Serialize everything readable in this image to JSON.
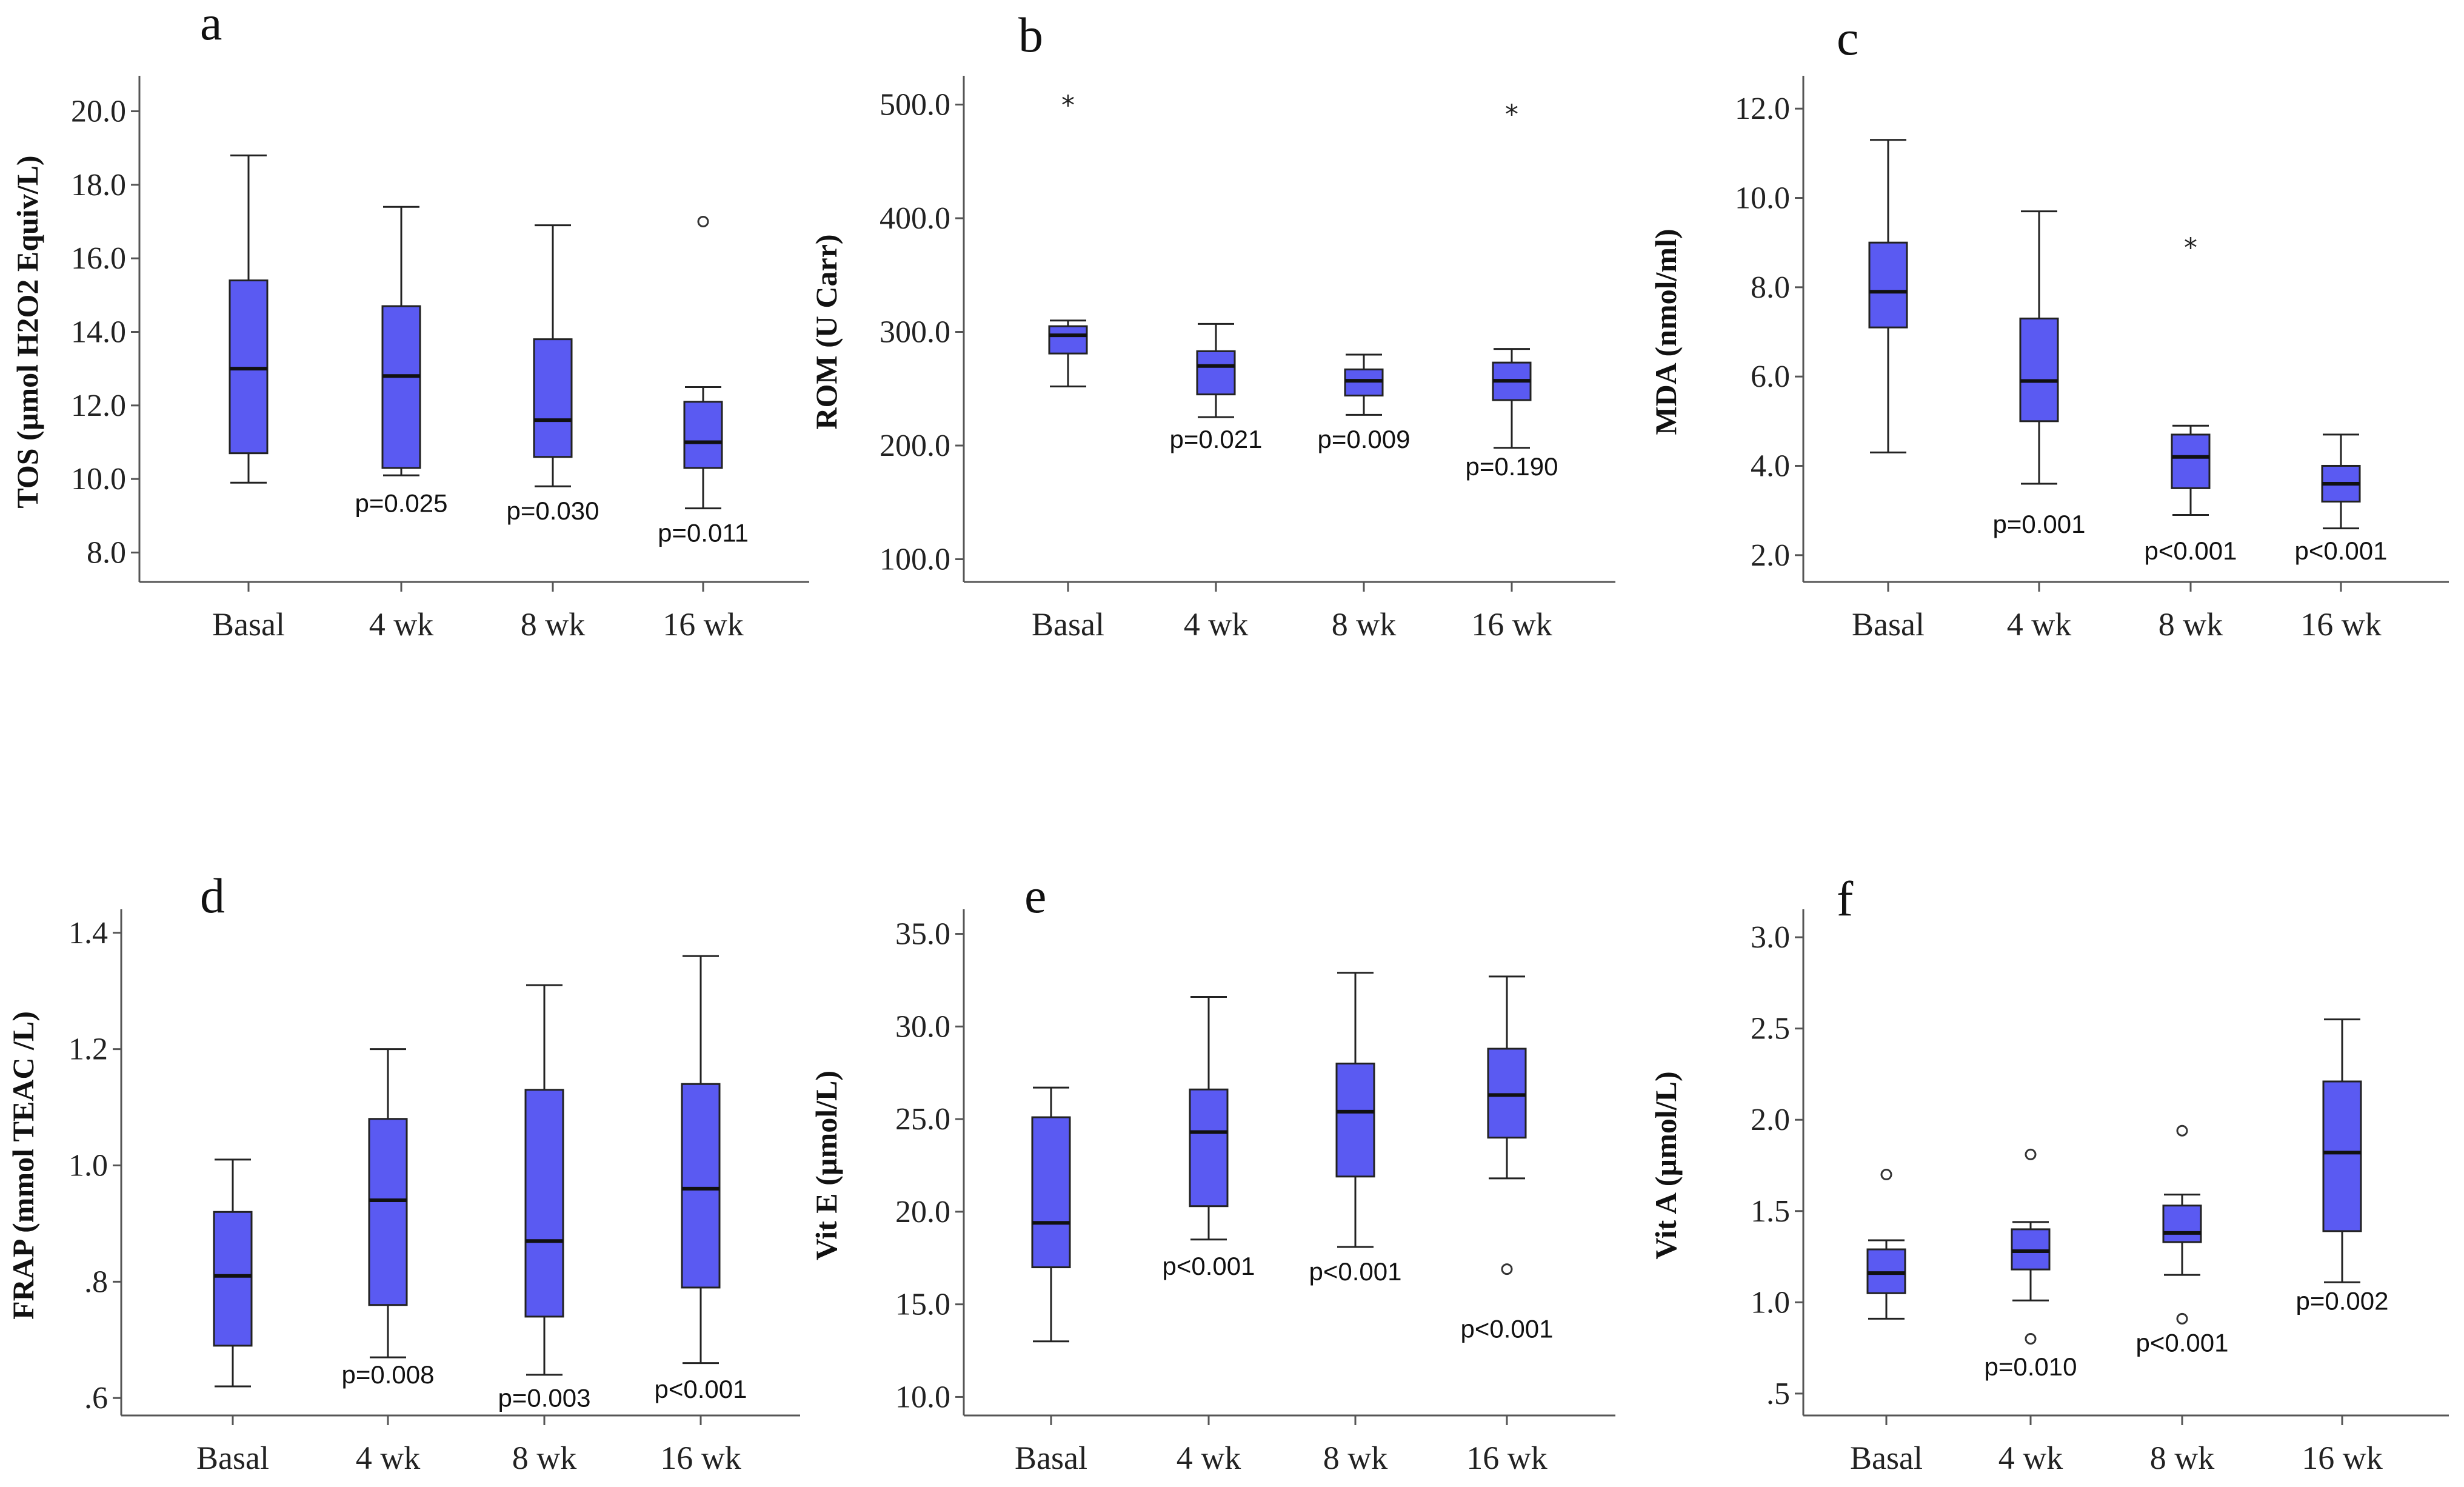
{
  "chart_data": [
    {
      "type": "box",
      "panel": "a",
      "ylabel": "TOS (µmol H2O2 Equiv/L)",
      "ylim": [
        7.2,
        20.8
      ],
      "yticks": [
        8,
        10,
        12,
        14,
        16,
        18,
        20
      ],
      "ytick_labels": [
        "8.0",
        "10.0",
        "12.0",
        "14.0",
        "16.0",
        "18.0",
        "20.0"
      ],
      "categories": [
        "Basal",
        "4 wk",
        "8 wk",
        "16 wk"
      ],
      "boxes": [
        {
          "whisker_low": 9.9,
          "q1": 10.7,
          "median": 13.0,
          "q3": 15.4,
          "whisker_high": 18.8,
          "outliers": [],
          "pvalue": ""
        },
        {
          "whisker_low": 10.1,
          "q1": 10.3,
          "median": 12.8,
          "q3": 14.7,
          "whisker_high": 17.4,
          "outliers": [],
          "pvalue": "p=0.025"
        },
        {
          "whisker_low": 9.8,
          "q1": 10.6,
          "median": 11.6,
          "q3": 13.8,
          "whisker_high": 16.9,
          "outliers": [],
          "pvalue": "p=0.030"
        },
        {
          "whisker_low": 9.2,
          "q1": 10.3,
          "median": 11.0,
          "q3": 12.1,
          "whisker_high": 12.5,
          "outliers": [
            {
              "value": 17.0,
              "marker": "circle"
            }
          ],
          "pvalue": "p=0.011"
        }
      ],
      "pvalue_positions": [
        null,
        9.1,
        8.9,
        8.3
      ]
    },
    {
      "type": "box",
      "panel": "b",
      "ylabel": "ROM (U Carr)",
      "ylim": [
        80,
        520
      ],
      "yticks": [
        100,
        200,
        300,
        400,
        500
      ],
      "ytick_labels": [
        "100.0",
        "200.0",
        "300.0",
        "400.0",
        "500.0"
      ],
      "categories": [
        "Basal",
        "4 wk",
        "8 wk",
        "16 wk"
      ],
      "boxes": [
        {
          "whisker_low": 252,
          "q1": 281,
          "median": 297,
          "q3": 305,
          "whisker_high": 310,
          "outliers": [
            {
              "value": 500,
              "marker": "star"
            }
          ],
          "pvalue": ""
        },
        {
          "whisker_low": 225,
          "q1": 245,
          "median": 270,
          "q3": 283,
          "whisker_high": 307,
          "outliers": [],
          "pvalue": "p=0.021"
        },
        {
          "whisker_low": 227,
          "q1": 244,
          "median": 257,
          "q3": 267,
          "whisker_high": 280,
          "outliers": [],
          "pvalue": "p=0.009"
        },
        {
          "whisker_low": 198,
          "q1": 240,
          "median": 257,
          "q3": 273,
          "whisker_high": 285,
          "outliers": [
            {
              "value": 492,
              "marker": "star"
            }
          ],
          "pvalue": "p=0.190"
        }
      ],
      "pvalue_positions": [
        null,
        198,
        198,
        174
      ]
    },
    {
      "type": "box",
      "panel": "c",
      "ylabel": "MDA (nmol/ml)",
      "ylim": [
        1.4,
        12.6
      ],
      "yticks": [
        2,
        4,
        6,
        8,
        10,
        12
      ],
      "ytick_labels": [
        "2.0",
        "4.0",
        "6.0",
        "8.0",
        "10.0",
        "12.0"
      ],
      "categories": [
        "Basal",
        "4 wk",
        "8 wk",
        "16  wk"
      ],
      "boxes": [
        {
          "whisker_low": 4.3,
          "q1": 7.1,
          "median": 7.9,
          "q3": 9.0,
          "whisker_high": 11.3,
          "outliers": [],
          "pvalue": ""
        },
        {
          "whisker_low": 3.6,
          "q1": 5.0,
          "median": 5.9,
          "q3": 7.3,
          "whisker_high": 9.7,
          "outliers": [],
          "pvalue": "p=0.001"
        },
        {
          "whisker_low": 2.9,
          "q1": 3.5,
          "median": 4.2,
          "q3": 4.7,
          "whisker_high": 4.9,
          "outliers": [
            {
              "value": 8.9,
              "marker": "star"
            }
          ],
          "pvalue": "p<0.001"
        },
        {
          "whisker_low": 2.6,
          "q1": 3.2,
          "median": 3.6,
          "q3": 4.0,
          "whisker_high": 4.7,
          "outliers": [],
          "pvalue": "p<0.001"
        }
      ],
      "pvalue_positions": [
        null,
        2.5,
        1.9,
        1.9
      ]
    },
    {
      "type": "box",
      "panel": "d",
      "ylabel": "FRAP (mmol TEAC /L)",
      "ylim": [
        0.57,
        1.43
      ],
      "yticks": [
        0.6,
        0.8,
        1.0,
        1.2,
        1.4
      ],
      "ytick_labels": [
        ".6",
        ".8",
        "1.0",
        "1.2",
        "1.4"
      ],
      "categories": [
        "Basal",
        "4 wk",
        "8 wk",
        "16 wk"
      ],
      "boxes": [
        {
          "whisker_low": 0.62,
          "q1": 0.69,
          "median": 0.81,
          "q3": 0.92,
          "whisker_high": 1.01,
          "outliers": [],
          "pvalue": ""
        },
        {
          "whisker_low": 0.67,
          "q1": 0.76,
          "median": 0.94,
          "q3": 1.08,
          "whisker_high": 1.2,
          "outliers": [],
          "pvalue": "p=0.008"
        },
        {
          "whisker_low": 0.64,
          "q1": 0.74,
          "median": 0.87,
          "q3": 1.13,
          "whisker_high": 1.31,
          "outliers": [],
          "pvalue": "p=0.003"
        },
        {
          "whisker_low": 0.66,
          "q1": 0.79,
          "median": 0.96,
          "q3": 1.14,
          "whisker_high": 1.36,
          "outliers": [],
          "pvalue": "p<0.001"
        }
      ],
      "pvalue_positions": [
        null,
        0.625,
        0.585,
        0.6
      ]
    },
    {
      "type": "box",
      "panel": "e",
      "ylabel": "Vit E (µmol/L)",
      "ylim": [
        9,
        36
      ],
      "yticks": [
        10,
        15,
        20,
        25,
        30,
        35
      ],
      "ytick_labels": [
        "10.0",
        "15.0",
        "20.0",
        "25.0",
        "30.0",
        "35.0"
      ],
      "categories": [
        "Basal",
        "4 wk",
        "8 wk",
        "16 wk"
      ],
      "boxes": [
        {
          "whisker_low": 13.0,
          "q1": 17.0,
          "median": 19.4,
          "q3": 25.1,
          "whisker_high": 26.7,
          "outliers": [],
          "pvalue": ""
        },
        {
          "whisker_low": 18.5,
          "q1": 20.3,
          "median": 24.3,
          "q3": 26.6,
          "whisker_high": 31.6,
          "outliers": [],
          "pvalue": "p<0.001"
        },
        {
          "whisker_low": 18.1,
          "q1": 21.9,
          "median": 25.4,
          "q3": 28.0,
          "whisker_high": 32.9,
          "outliers": [],
          "pvalue": "p<0.001"
        },
        {
          "whisker_low": 21.8,
          "q1": 24.0,
          "median": 26.3,
          "q3": 28.8,
          "whisker_high": 32.7,
          "outliers": [
            {
              "value": 16.9,
              "marker": "circle"
            }
          ],
          "pvalue": "p<0.001"
        }
      ],
      "pvalue_positions": [
        null,
        16.6,
        16.3,
        13.2
      ]
    },
    {
      "type": "box",
      "panel": "f",
      "ylabel": "Vit A (µmol/L)",
      "ylim": [
        0.38,
        3.12
      ],
      "yticks": [
        0.5,
        1.0,
        1.5,
        2.0,
        2.5,
        3.0
      ],
      "ytick_labels": [
        ".5",
        "1.0",
        "1.5",
        "2.0",
        "2.5",
        "3.0"
      ],
      "categories": [
        "Basal",
        "4 wk",
        "8 wk",
        "16 wk"
      ],
      "boxes": [
        {
          "whisker_low": 0.91,
          "q1": 1.05,
          "median": 1.16,
          "q3": 1.29,
          "whisker_high": 1.34,
          "outliers": [
            {
              "value": 1.7,
              "marker": "circle"
            }
          ],
          "pvalue": ""
        },
        {
          "whisker_low": 1.01,
          "q1": 1.18,
          "median": 1.28,
          "q3": 1.4,
          "whisker_high": 1.44,
          "outliers": [
            {
              "value": 1.81,
              "marker": "circle"
            },
            {
              "value": 0.8,
              "marker": "circle"
            }
          ],
          "pvalue": "p=0.010"
        },
        {
          "whisker_low": 1.15,
          "q1": 1.33,
          "median": 1.38,
          "q3": 1.53,
          "whisker_high": 1.59,
          "outliers": [
            {
              "value": 1.94,
              "marker": "circle"
            },
            {
              "value": 0.91,
              "marker": "circle"
            }
          ],
          "pvalue": "p<0.001"
        },
        {
          "whisker_low": 1.11,
          "q1": 1.39,
          "median": 1.82,
          "q3": 2.21,
          "whisker_high": 2.55,
          "outliers": [],
          "pvalue": "p=0.002"
        }
      ],
      "pvalue_positions": [
        null,
        0.6,
        0.73,
        0.96
      ]
    }
  ]
}
